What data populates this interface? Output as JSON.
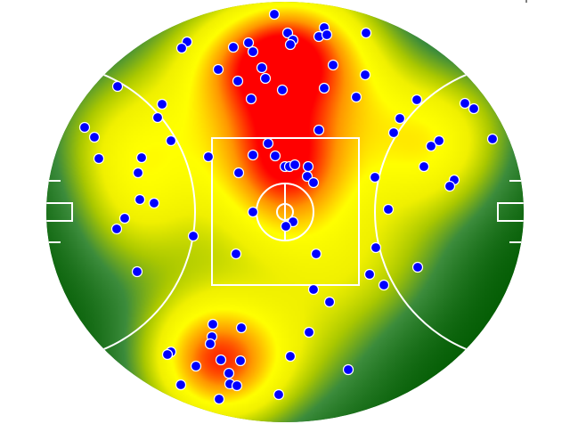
{
  "chart_data": {
    "type": "scatter",
    "subtype": "heatmap-over-football-field",
    "title": "",
    "grid": false,
    "legend": "none",
    "colors": {
      "point_fill": "#0000ff",
      "point_stroke": "#ffffff",
      "field_lines": "#ffffff",
      "heat_low": "#005a00",
      "heat_mid": "#ffff00",
      "heat_high": "#ff0000"
    },
    "points": [
      {
        "x": -12,
        "y": 222
      },
      {
        "x": 44,
        "y": 207
      },
      {
        "x": 3,
        "y": 201
      },
      {
        "x": 38,
        "y": 197
      },
      {
        "x": 47,
        "y": 199
      },
      {
        "x": 91,
        "y": 201
      },
      {
        "x": 9,
        "y": 193
      },
      {
        "x": 6,
        "y": 188
      },
      {
        "x": -41,
        "y": 190
      },
      {
        "x": -110,
        "y": 191
      },
      {
        "x": -116,
        "y": 184
      },
      {
        "x": -58,
        "y": 185
      },
      {
        "x": -36,
        "y": 180
      },
      {
        "x": 54,
        "y": 165
      },
      {
        "x": -26,
        "y": 162
      },
      {
        "x": -75,
        "y": 160
      },
      {
        "x": -53,
        "y": 147
      },
      {
        "x": -22,
        "y": 150
      },
      {
        "x": 90,
        "y": 154
      },
      {
        "x": -3,
        "y": 137
      },
      {
        "x": 44,
        "y": 139
      },
      {
        "x": -188,
        "y": 141
      },
      {
        "x": 80,
        "y": 129
      },
      {
        "x": -38,
        "y": 127
      },
      {
        "x": 148,
        "y": 126
      },
      {
        "x": -138,
        "y": 121
      },
      {
        "x": 202,
        "y": 122
      },
      {
        "x": 212,
        "y": 116
      },
      {
        "x": -143,
        "y": 106
      },
      {
        "x": 129,
        "y": 105
      },
      {
        "x": -225,
        "y": 95
      },
      {
        "x": -214,
        "y": 84
      },
      {
        "x": 38,
        "y": 92
      },
      {
        "x": 122,
        "y": 89
      },
      {
        "x": 233,
        "y": 82
      },
      {
        "x": 173,
        "y": 80
      },
      {
        "x": 164,
        "y": 74
      },
      {
        "x": -128,
        "y": 80
      },
      {
        "x": -19,
        "y": 77
      },
      {
        "x": -209,
        "y": 60
      },
      {
        "x": -161,
        "y": 61
      },
      {
        "x": -86,
        "y": 62
      },
      {
        "x": -36,
        "y": 64
      },
      {
        "x": -11,
        "y": 63
      },
      {
        "x": 156,
        "y": 51
      },
      {
        "x": 0,
        "y": 51
      },
      {
        "x": 5,
        "y": 51
      },
      {
        "x": 11,
        "y": 53
      },
      {
        "x": 26,
        "y": 51
      },
      {
        "x": -165,
        "y": 44
      },
      {
        "x": -52,
        "y": 44
      },
      {
        "x": 25,
        "y": 40
      },
      {
        "x": 32,
        "y": 33
      },
      {
        "x": 101,
        "y": 39
      },
      {
        "x": 190,
        "y": 36
      },
      {
        "x": 185,
        "y": 29
      },
      {
        "x": -163,
        "y": 14
      },
      {
        "x": -147,
        "y": 10
      },
      {
        "x": -36,
        "y": 0
      },
      {
        "x": 116,
        "y": 3
      },
      {
        "x": -180,
        "y": -7
      },
      {
        "x": 9,
        "y": -11
      },
      {
        "x": 1,
        "y": -16
      },
      {
        "x": -189,
        "y": -19
      },
      {
        "x": -103,
        "y": -27
      },
      {
        "x": 102,
        "y": -40
      },
      {
        "x": -55,
        "y": -47
      },
      {
        "x": 35,
        "y": -47
      },
      {
        "x": 149,
        "y": -62
      },
      {
        "x": -166,
        "y": -67
      },
      {
        "x": 95,
        "y": -70
      },
      {
        "x": 111,
        "y": -82
      },
      {
        "x": 32,
        "y": -87
      },
      {
        "x": 50,
        "y": -101
      },
      {
        "x": -81,
        "y": -126
      },
      {
        "x": -49,
        "y": -130
      },
      {
        "x": -82,
        "y": -140
      },
      {
        "x": 27,
        "y": -135
      },
      {
        "x": -84,
        "y": -148
      },
      {
        "x": -128,
        "y": -157
      },
      {
        "x": -132,
        "y": -160
      },
      {
        "x": 6,
        "y": -162
      },
      {
        "x": -72,
        "y": -166
      },
      {
        "x": -50,
        "y": -167
      },
      {
        "x": -100,
        "y": -173
      },
      {
        "x": 71,
        "y": -177
      },
      {
        "x": -63,
        "y": -181
      },
      {
        "x": -62,
        "y": -193
      },
      {
        "x": -54,
        "y": -195
      },
      {
        "x": -117,
        "y": -194
      },
      {
        "x": -7,
        "y": -205
      },
      {
        "x": -74,
        "y": -210
      }
    ]
  }
}
